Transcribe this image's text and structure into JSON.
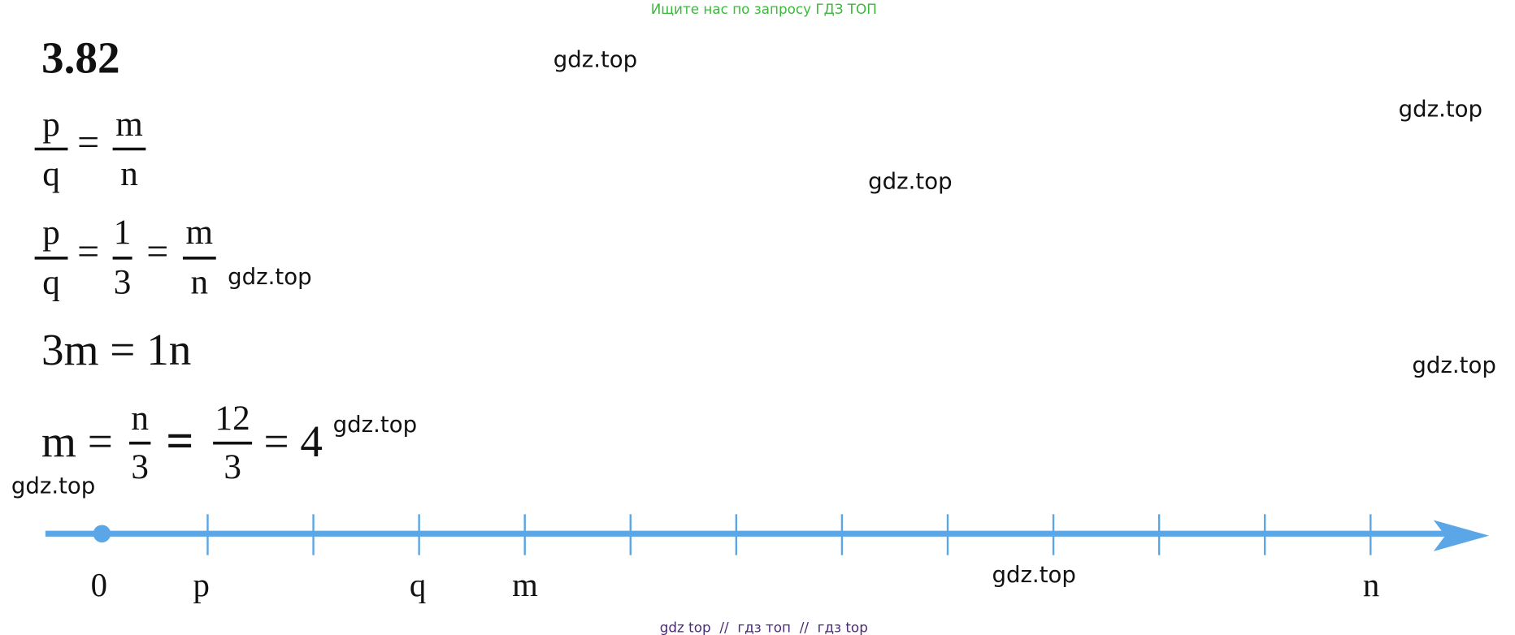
{
  "header": {
    "note": "Ищите нас по запросу ГДЗ ТОП"
  },
  "title": "3.82",
  "equations": [
    [
      {
        "num": "p",
        "den": "q"
      },
      "=",
      {
        "num": "m",
        "den": "n"
      }
    ],
    [
      {
        "num": "p",
        "den": "q"
      },
      "=",
      {
        "num": "1",
        "den": "3"
      },
      "=",
      {
        "num": "m",
        "den": "n"
      }
    ],
    [
      "3m = 1n"
    ],
    [
      "m =",
      {
        "num": "n",
        "den": "3"
      },
      "=",
      {
        "num": "12",
        "den": "3"
      },
      "= 4"
    ]
  ],
  "number_line": {
    "labels": [
      "0",
      "p",
      "q",
      "m",
      "n"
    ]
  },
  "watermarks": [
    "gdz.top",
    "gdz.top",
    "gdz.top",
    "gdz.top",
    "gdz.top",
    "gdz.top",
    "gdz.top",
    "gdz.top"
  ],
  "footer": "gdz top  //  гдз топ  //  гдз top"
}
